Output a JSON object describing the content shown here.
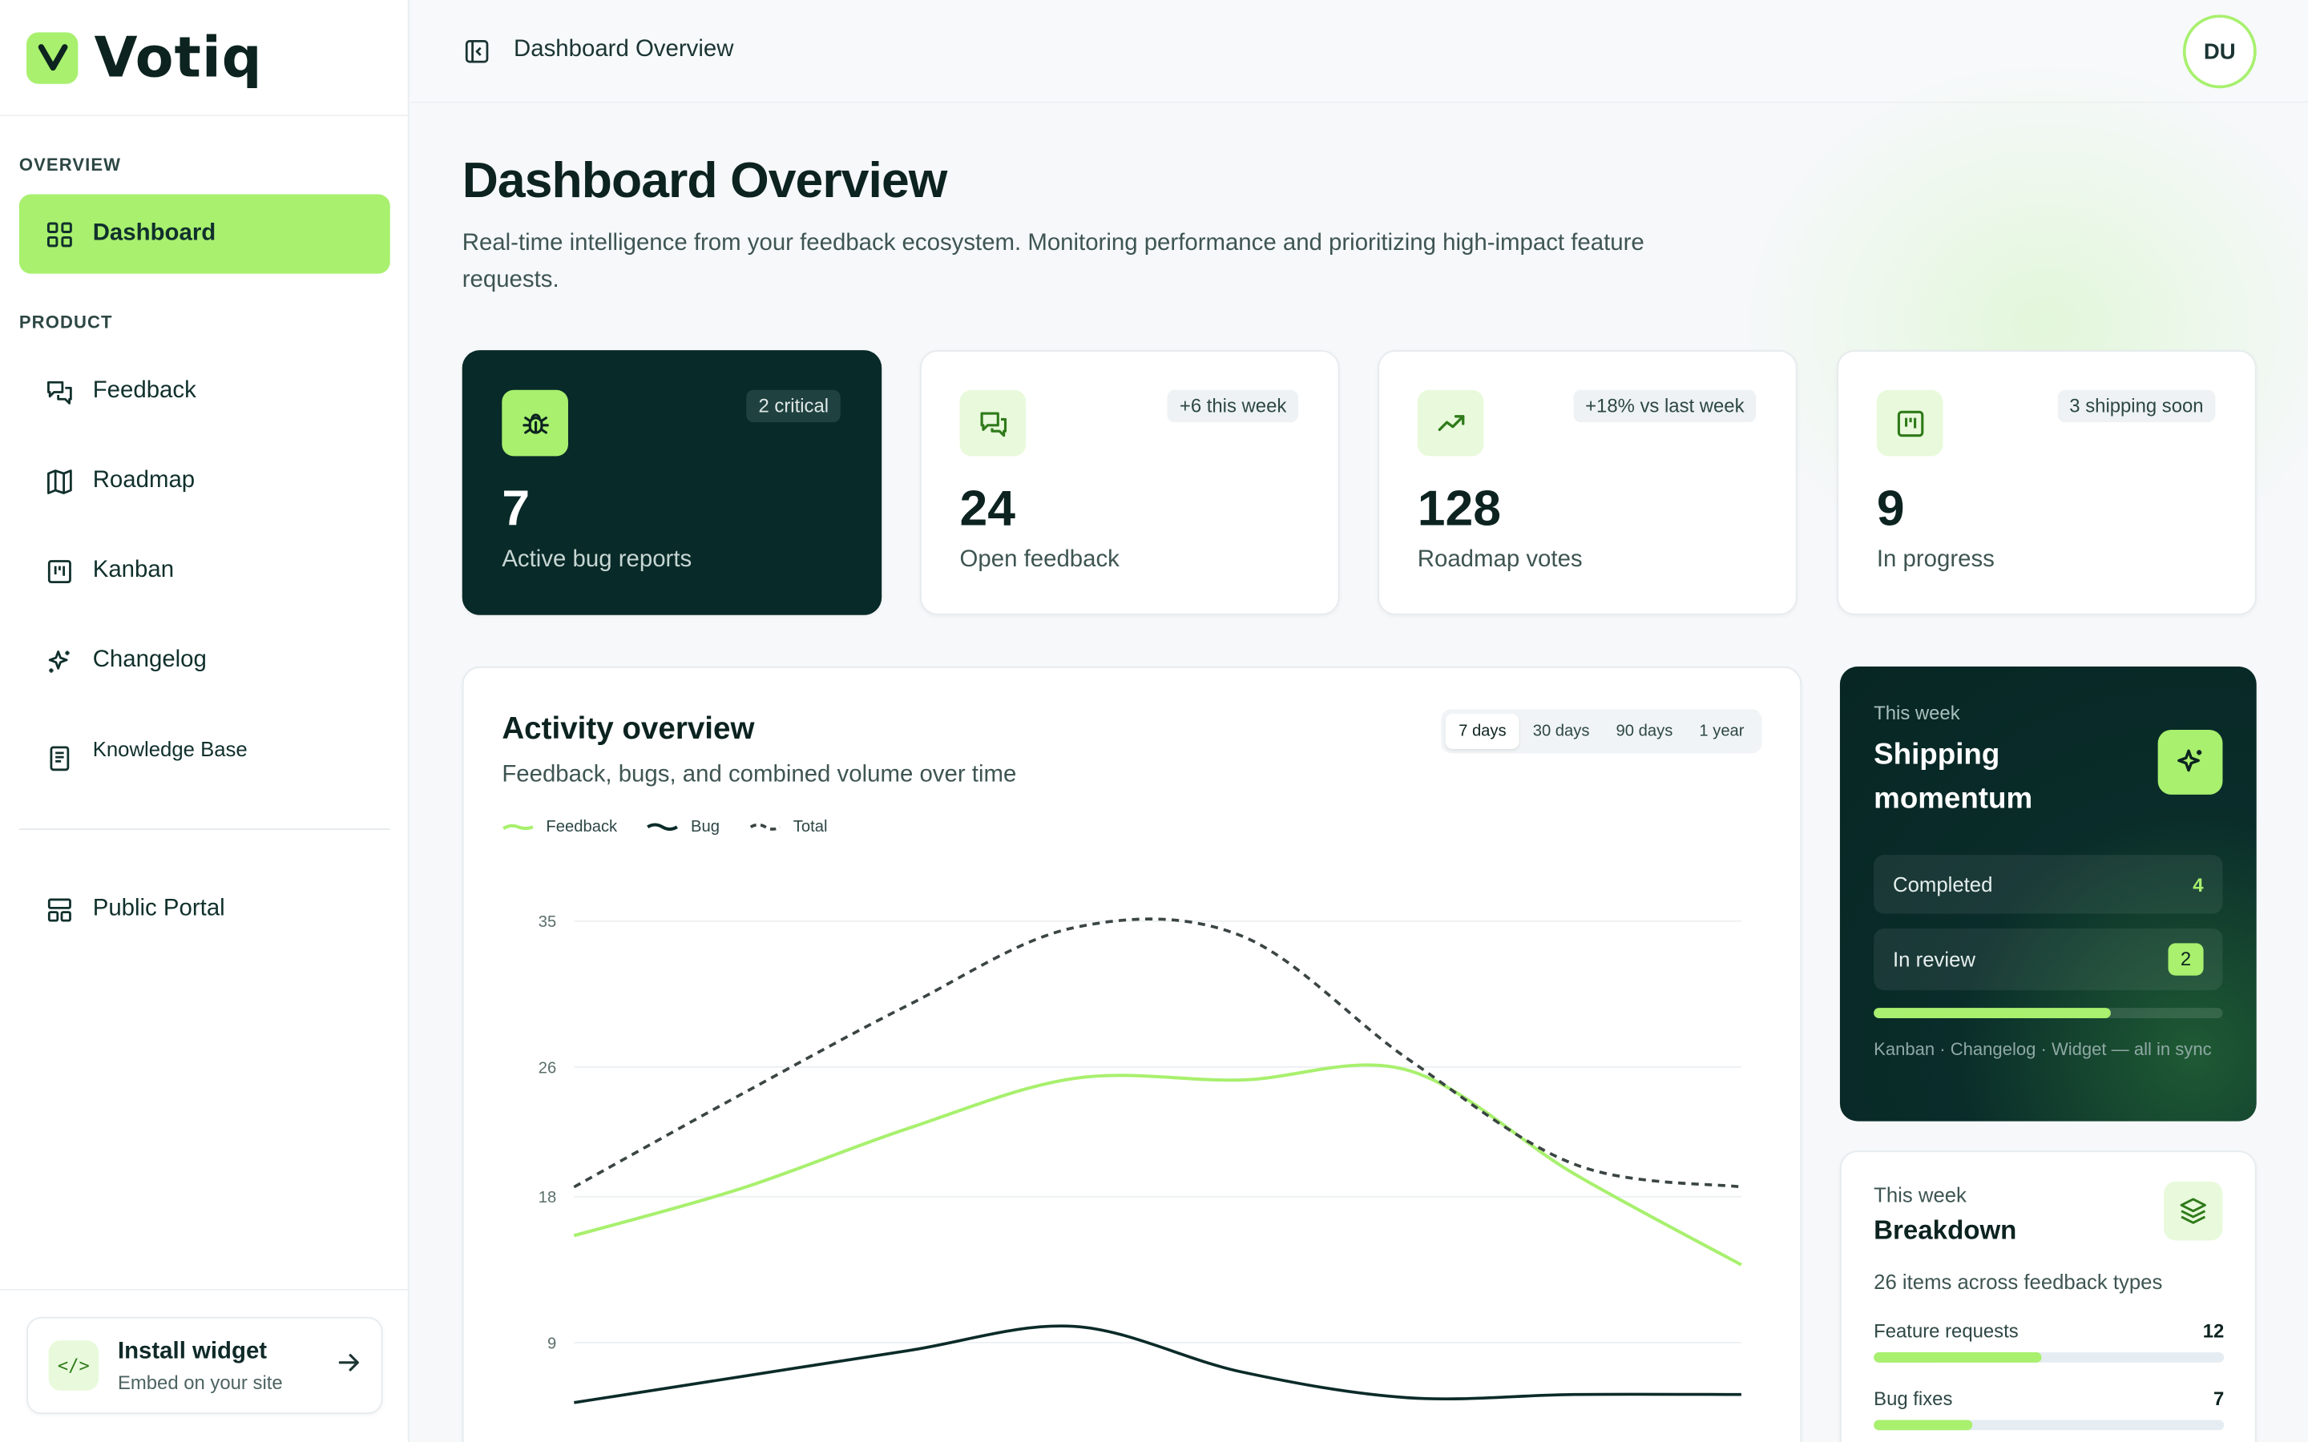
{
  "brand": {
    "name": "Votiq",
    "logo_letter": "V"
  },
  "sidebar": {
    "overview_label": "OVERVIEW",
    "product_label": "PRODUCT",
    "items": [
      {
        "label": "Dashboard",
        "icon": "grid-icon",
        "active": true
      },
      {
        "label": "Feedback",
        "icon": "chat-icon"
      },
      {
        "label": "Roadmap",
        "icon": "map-icon"
      },
      {
        "label": "Kanban",
        "icon": "kanban-icon"
      },
      {
        "label": "Changelog",
        "icon": "sparkle-icon"
      },
      {
        "label": "Knowledge Base",
        "icon": "book-icon"
      },
      {
        "label": "Public Portal",
        "icon": "layout-icon"
      }
    ],
    "widget": {
      "title": "Install widget",
      "subtitle": "Embed on your site",
      "icon_text": "</>"
    }
  },
  "topbar": {
    "title": "Dashboard Overview",
    "avatar": "DU"
  },
  "page": {
    "title": "Dashboard Overview",
    "description": "Real-time intelligence from your feedback ecosystem. Monitoring performance and prioritizing high-impact feature requests."
  },
  "stats": [
    {
      "value": "7",
      "label": "Active bug reports",
      "badge": "2 critical",
      "icon": "bug-icon"
    },
    {
      "value": "24",
      "label": "Open feedback",
      "badge": "+6 this week",
      "icon": "chat-icon"
    },
    {
      "value": "128",
      "label": "Roadmap votes",
      "badge": "+18% vs last week",
      "icon": "trend-up-icon"
    },
    {
      "value": "9",
      "label": "In progress",
      "badge": "3 shipping soon",
      "icon": "kanban-icon"
    }
  ],
  "activity": {
    "title": "Activity overview",
    "subtitle": "Feedback, bugs, and combined volume over time",
    "ranges": [
      "7 days",
      "30 days",
      "90 days",
      "1 year"
    ],
    "active_range": "7 days"
  },
  "chart_data": {
    "type": "line",
    "title": "Activity overview",
    "xlabel": "",
    "ylabel": "",
    "ylim": [
      5,
      35
    ],
    "yticks": [
      35,
      26,
      18,
      9
    ],
    "grid": true,
    "legend": "top-left",
    "x": [
      0,
      1,
      2,
      3,
      4,
      5,
      6,
      7
    ],
    "series": [
      {
        "name": "Feedback",
        "color": "#a8f06e",
        "style": "solid",
        "values": [
          15.6,
          18.5,
          22.2,
          25.3,
          25.2,
          25.8,
          19.4,
          13.8
        ]
      },
      {
        "name": "Bug",
        "color": "#0b2b29",
        "style": "solid",
        "values": [
          5.3,
          6.9,
          8.5,
          10.0,
          7.2,
          5.6,
          5.8,
          5.8
        ]
      },
      {
        "name": "Total",
        "color": "#3a4544",
        "style": "dashed",
        "values": [
          18.6,
          24.3,
          29.8,
          34.6,
          34.1,
          26.5,
          20.0,
          18.6
        ]
      }
    ]
  },
  "shipping": {
    "kicker": "This week",
    "title": "Shipping momentum",
    "completed_label": "Completed",
    "completed_value": "4",
    "review_label": "In review",
    "review_value": "2",
    "progress": 0.68,
    "footer": "Kanban · Changelog · Widget — all in sync"
  },
  "breakdown": {
    "kicker": "This week",
    "title": "Breakdown",
    "subtitle": "26 items across feedback types",
    "rows": [
      {
        "label": "Feature requests",
        "value": "12",
        "fraction": 0.48
      },
      {
        "label": "Bug fixes",
        "value": "7",
        "fraction": 0.28
      }
    ]
  },
  "colors": {
    "accent": "#a8f06e",
    "dark": "#082a28"
  }
}
